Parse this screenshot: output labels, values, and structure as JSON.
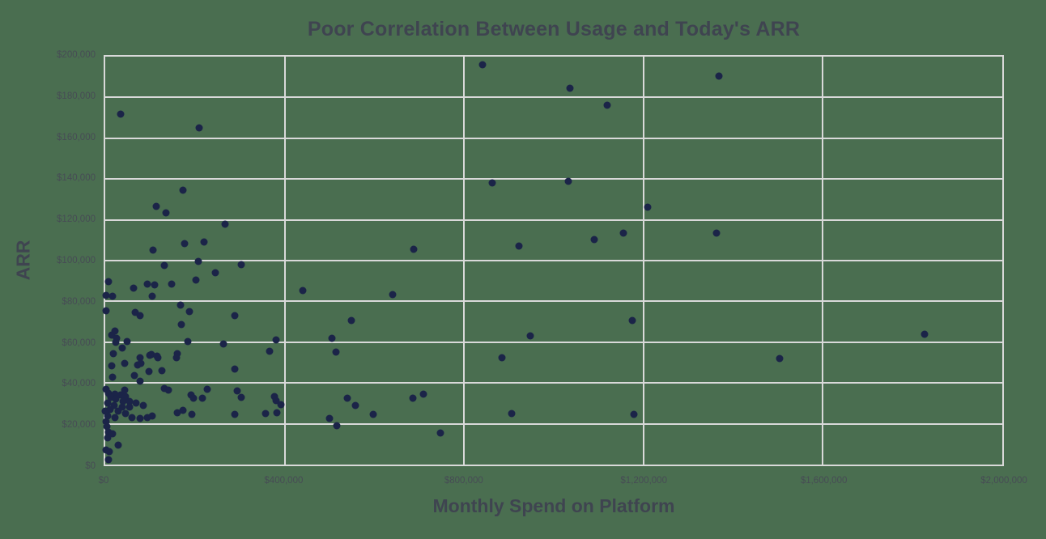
{
  "colors": {
    "background": "#4a6e50",
    "gridline": "#d9d9d9",
    "point": "#1b2448",
    "title_text": "#3f4450",
    "tick_text": "#474c55"
  },
  "chart_data": {
    "type": "scatter",
    "title": "Poor Correlation Between Usage and Today's ARR",
    "xlabel": "Monthly Spend on Platform",
    "ylabel": "ARR",
    "xlim": [
      0,
      2000000
    ],
    "ylim": [
      0,
      200000
    ],
    "grid": true,
    "legend": false,
    "x_ticks": {
      "values": [
        0,
        400000,
        800000,
        1200000,
        1600000,
        2000000
      ],
      "labels": [
        "$0",
        "$400,000",
        "$800,000",
        "$1,200,000",
        "$1,600,000",
        "$2,000,000"
      ]
    },
    "y_ticks": {
      "values": [
        0,
        20000,
        40000,
        60000,
        80000,
        100000,
        120000,
        140000,
        160000,
        180000,
        200000
      ],
      "labels": [
        "$0",
        "$20,000",
        "$40,000",
        "$60,000",
        "$80,000",
        "$100,000",
        "$120,000",
        "$140,000",
        "$160,000",
        "$180,000",
        "$200,000"
      ]
    },
    "points": [
      [
        841000,
        196000
      ],
      [
        35000,
        172000
      ],
      [
        209000,
        165000
      ],
      [
        174000,
        134500
      ],
      [
        114000,
        126500
      ],
      [
        135000,
        123500
      ],
      [
        862000,
        138000
      ],
      [
        268000,
        118000
      ],
      [
        176000,
        108500
      ],
      [
        221000,
        109000
      ],
      [
        107000,
        105000
      ],
      [
        688000,
        105500
      ],
      [
        923000,
        107000
      ],
      [
        1369000,
        190500
      ],
      [
        1037000,
        184500
      ],
      [
        1120000,
        176000
      ],
      [
        1032000,
        139000
      ],
      [
        1209000,
        126000
      ],
      [
        1155000,
        113500
      ],
      [
        1091000,
        110500
      ],
      [
        1362000,
        113500
      ],
      [
        132000,
        97500
      ],
      [
        208000,
        99500
      ],
      [
        304000,
        98000
      ],
      [
        245000,
        94000
      ],
      [
        202000,
        90500
      ],
      [
        8000,
        89500
      ],
      [
        64000,
        86500
      ],
      [
        93000,
        88500
      ],
      [
        111000,
        88000
      ],
      [
        148000,
        88500
      ],
      [
        441000,
        85500
      ],
      [
        2000,
        83000
      ],
      [
        16000,
        82500
      ],
      [
        105000,
        82500
      ],
      [
        167000,
        78000
      ],
      [
        1000,
        75500
      ],
      [
        66000,
        74500
      ],
      [
        77000,
        73000
      ],
      [
        188000,
        75000
      ],
      [
        289000,
        73000
      ],
      [
        170000,
        68500
      ],
      [
        21000,
        65500
      ],
      [
        14000,
        63500
      ],
      [
        26000,
        62000
      ],
      [
        24000,
        60000
      ],
      [
        49000,
        60500
      ],
      [
        185000,
        60500
      ],
      [
        380000,
        61000
      ],
      [
        505000,
        62000
      ],
      [
        263000,
        59000
      ],
      [
        38000,
        57000
      ],
      [
        366000,
        55500
      ],
      [
        514000,
        55000
      ],
      [
        18000,
        54500
      ],
      [
        102000,
        54000
      ],
      [
        117000,
        52500
      ],
      [
        161000,
        54500
      ],
      [
        78000,
        52500
      ],
      [
        100000,
        53500
      ],
      [
        116000,
        53000
      ],
      [
        158000,
        52500
      ],
      [
        640000,
        83500
      ],
      [
        549000,
        70500
      ],
      [
        948000,
        63000
      ],
      [
        1175000,
        70500
      ],
      [
        1826000,
        64000
      ],
      [
        1503000,
        52000
      ],
      [
        1179000,
        24500
      ],
      [
        884000,
        52500
      ],
      [
        539000,
        32500
      ],
      [
        557000,
        29000
      ],
      [
        597000,
        24500
      ],
      [
        686000,
        32500
      ],
      [
        709000,
        34500
      ],
      [
        907000,
        25000
      ],
      [
        748000,
        15500
      ],
      [
        14000,
        48500
      ],
      [
        43000,
        49500
      ],
      [
        72000,
        49000
      ],
      [
        79000,
        49500
      ],
      [
        289000,
        47000
      ],
      [
        97000,
        45500
      ],
      [
        126000,
        46000
      ],
      [
        65000,
        43500
      ],
      [
        16000,
        43000
      ],
      [
        78000,
        41000
      ],
      [
        1000,
        37000
      ],
      [
        43000,
        36500
      ],
      [
        132000,
        37500
      ],
      [
        141000,
        36500
      ],
      [
        228000,
        37000
      ],
      [
        295000,
        36000
      ],
      [
        191000,
        34000
      ],
      [
        197000,
        32500
      ],
      [
        217000,
        32500
      ],
      [
        304000,
        33000
      ],
      [
        378000,
        33500
      ],
      [
        381000,
        31500
      ],
      [
        392000,
        29500
      ],
      [
        7000,
        35000
      ],
      [
        22000,
        34500
      ],
      [
        34000,
        34000
      ],
      [
        45000,
        33500
      ],
      [
        12000,
        33000
      ],
      [
        24000,
        32000
      ],
      [
        39000,
        31000
      ],
      [
        54000,
        31000
      ],
      [
        5000,
        30000
      ],
      [
        20000,
        29000
      ],
      [
        38000,
        28000
      ],
      [
        55000,
        28000
      ],
      [
        10000,
        27000
      ],
      [
        28000,
        26000
      ],
      [
        46000,
        25000
      ],
      [
        6000,
        24000
      ],
      [
        22000,
        23000
      ],
      [
        68000,
        30000
      ],
      [
        84000,
        29000
      ],
      [
        60000,
        23000
      ],
      [
        77000,
        22500
      ],
      [
        93000,
        23000
      ],
      [
        105000,
        24000
      ],
      [
        161000,
        25500
      ],
      [
        173000,
        26500
      ],
      [
        194000,
        24500
      ],
      [
        289000,
        24500
      ],
      [
        357000,
        25000
      ],
      [
        382000,
        25500
      ],
      [
        500000,
        22500
      ],
      [
        517000,
        19000
      ],
      [
        0,
        26000
      ],
      [
        1000,
        21000
      ],
      [
        4000,
        18500
      ],
      [
        7000,
        16000
      ],
      [
        16000,
        15000
      ],
      [
        6000,
        13000
      ],
      [
        28000,
        9500
      ],
      [
        2000,
        7000
      ],
      [
        9000,
        6500
      ],
      [
        7000,
        2500
      ]
    ]
  }
}
